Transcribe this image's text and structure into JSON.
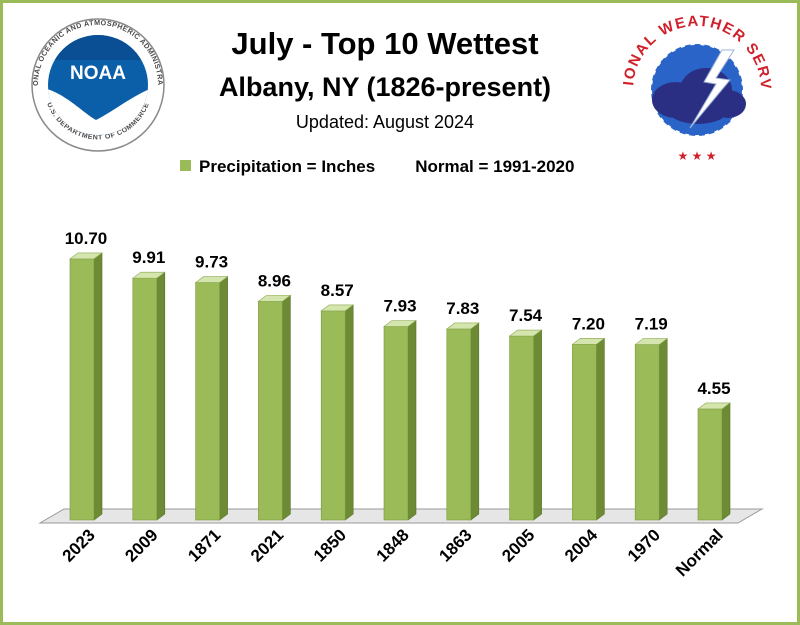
{
  "header": {
    "title": "July - Top 10 Wettest",
    "subtitle": "Albany, NY (1826-present)",
    "updated": "Updated: August 2024"
  },
  "legend": {
    "series_label": "Precipitation = Inches",
    "normal_label": "Normal = 1991-2020"
  },
  "logos": {
    "noaa": {
      "wordmark": "NOAA",
      "ring_text": "NATIONAL OCEANIC AND ATMOSPHERIC ADMINISTRATION",
      "ring_text_bottom": "U.S. DEPARTMENT OF COMMERCE"
    },
    "nws": {
      "ring_text": "NATIONAL WEATHER SERVICE"
    }
  },
  "colors": {
    "bar_front": "#9bbb59",
    "bar_side": "#6d8a34",
    "bar_top": "#d4e5ae",
    "frame": "#9bbb59",
    "noaa_blue": "#0b5fa8",
    "nws_red": "#d0202a",
    "nws_blue": "#2a64c8",
    "nws_cloud": "#2b2f84"
  },
  "chart_data": {
    "type": "bar",
    "title": "July - Top 10 Wettest",
    "subtitle": "Albany, NY (1826-present)",
    "categories": [
      "2023",
      "2009",
      "1871",
      "2021",
      "1850",
      "1848",
      "1863",
      "2005",
      "2004",
      "1970",
      "Normal"
    ],
    "series": [
      {
        "name": "Precipitation = Inches",
        "values": [
          10.7,
          9.91,
          9.73,
          8.96,
          8.57,
          7.93,
          7.83,
          7.54,
          7.2,
          7.19,
          4.55
        ]
      }
    ],
    "data_labels": [
      "10.70",
      "9.91",
      "9.73",
      "8.96",
      "8.57",
      "7.93",
      "7.83",
      "7.54",
      "7.20",
      "7.19",
      "4.55"
    ],
    "ylim": [
      0,
      12
    ],
    "grid": false,
    "legend_position": "top",
    "style": "3d"
  }
}
